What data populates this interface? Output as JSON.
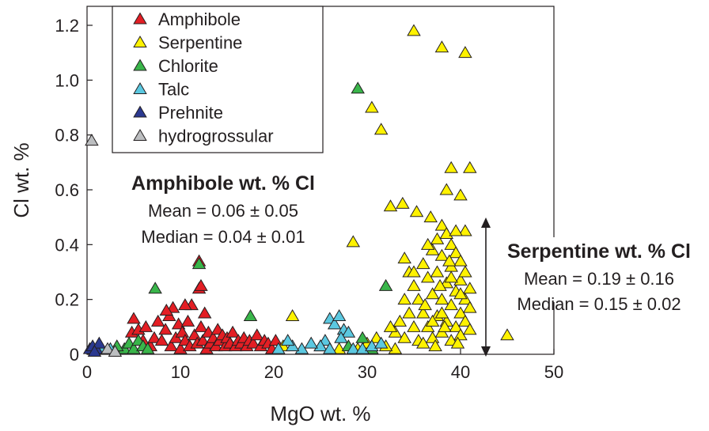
{
  "chart_data": {
    "type": "scatter",
    "title": "",
    "xlabel": "MgO wt. %",
    "ylabel": "Cl wt. %",
    "xlim": [
      0,
      50
    ],
    "ylim": [
      0,
      1.25
    ],
    "xticks": [
      0,
      10,
      20,
      30,
      40,
      50
    ],
    "ytick_labels": [
      "0",
      "0.2",
      "0.4",
      "0.6",
      "0.8",
      "1.0",
      "1.2"
    ],
    "yticks": [
      0,
      0.2,
      0.4,
      0.6,
      0.8,
      1.0,
      1.2
    ],
    "grid": false,
    "legend_position": "top-left",
    "marker": "triangle",
    "series": [
      {
        "name": "Amphibole",
        "color": "#e31e24",
        "points": [
          [
            4.8,
            0.08
          ],
          [
            5,
            0.13
          ],
          [
            5.5,
            0.09
          ],
          [
            6,
            0.05
          ],
          [
            6.3,
            0.1
          ],
          [
            6.8,
            0.03
          ],
          [
            7.2,
            0.06
          ],
          [
            7.6,
            0.12
          ],
          [
            8,
            0.05
          ],
          [
            8.4,
            0.09
          ],
          [
            8.8,
            0.14
          ],
          [
            9,
            0.03
          ],
          [
            9.2,
            0.17
          ],
          [
            9.5,
            0.06
          ],
          [
            9.8,
            0.11
          ],
          [
            10,
            0.02
          ],
          [
            10.2,
            0.08
          ],
          [
            10.5,
            0.05
          ],
          [
            10.8,
            0.12
          ],
          [
            11,
            0.03
          ],
          [
            11.2,
            0.18
          ],
          [
            11.5,
            0.07
          ],
          [
            11.8,
            0.04
          ],
          [
            12,
            0.24
          ],
          [
            12.2,
            0.1
          ],
          [
            12.4,
            0.05
          ],
          [
            12.6,
            0.15
          ],
          [
            12.8,
            0.02
          ],
          [
            13,
            0.08
          ],
          [
            13.2,
            0.04
          ],
          [
            13.5,
            0.06
          ],
          [
            13.8,
            0.03
          ],
          [
            14,
            0.09
          ],
          [
            14.2,
            0.05
          ],
          [
            14.5,
            0.07
          ],
          [
            14.8,
            0.03
          ],
          [
            15,
            0.06
          ],
          [
            15.3,
            0.04
          ],
          [
            15.6,
            0.08
          ],
          [
            15.9,
            0.03
          ],
          [
            16.2,
            0.05
          ],
          [
            16.5,
            0.04
          ],
          [
            16.8,
            0.06
          ],
          [
            17.1,
            0.03
          ],
          [
            17.4,
            0.05
          ],
          [
            17.8,
            0.04
          ],
          [
            18.2,
            0.07
          ],
          [
            18.6,
            0.03
          ],
          [
            19,
            0.05
          ],
          [
            19.4,
            0.04
          ],
          [
            19.8,
            0.02
          ],
          [
            20.2,
            0.05
          ],
          [
            12,
            0.34
          ],
          [
            12.2,
            0.25
          ],
          [
            10.5,
            0.18
          ],
          [
            8.5,
            0.16
          ]
        ]
      },
      {
        "name": "Serpentine",
        "color": "#fff200",
        "points": [
          [
            35,
            1.18
          ],
          [
            38,
            1.12
          ],
          [
            40.5,
            1.1
          ],
          [
            30.5,
            0.9
          ],
          [
            31.5,
            0.82
          ],
          [
            32.5,
            0.54
          ],
          [
            33.8,
            0.55
          ],
          [
            35.3,
            0.52
          ],
          [
            39,
            0.68
          ],
          [
            41,
            0.68
          ],
          [
            38.5,
            0.6
          ],
          [
            40,
            0.58
          ],
          [
            28.5,
            0.41
          ],
          [
            38,
            0.47
          ],
          [
            40.5,
            0.45
          ],
          [
            34,
            0.35
          ],
          [
            34.5,
            0.3
          ],
          [
            35,
            0.25
          ],
          [
            35.5,
            0.2
          ],
          [
            36,
            0.33
          ],
          [
            36,
            0.15
          ],
          [
            36.5,
            0.28
          ],
          [
            36.5,
            0.1
          ],
          [
            37,
            0.38
          ],
          [
            37,
            0.22
          ],
          [
            37,
            0.06
          ],
          [
            37.5,
            0.42
          ],
          [
            37.5,
            0.3
          ],
          [
            37.5,
            0.14
          ],
          [
            38,
            0.36
          ],
          [
            38,
            0.2
          ],
          [
            38,
            0.08
          ],
          [
            38.5,
            0.44
          ],
          [
            38.5,
            0.26
          ],
          [
            38.5,
            0.12
          ],
          [
            39,
            0.4
          ],
          [
            39,
            0.32
          ],
          [
            39,
            0.18
          ],
          [
            39,
            0.05
          ],
          [
            39.5,
            0.37
          ],
          [
            39.5,
            0.23
          ],
          [
            39.5,
            0.1
          ],
          [
            40,
            0.34
          ],
          [
            40,
            0.27
          ],
          [
            40,
            0.15
          ],
          [
            40,
            0.07
          ],
          [
            40.5,
            0.3
          ],
          [
            40.5,
            0.2
          ],
          [
            40.5,
            0.12
          ],
          [
            41,
            0.24
          ],
          [
            41,
            0.17
          ],
          [
            41,
            0.09
          ],
          [
            36.5,
            0.4
          ],
          [
            37,
            0.12
          ],
          [
            38,
            0.15
          ],
          [
            39,
            0.28
          ],
          [
            40,
            0.22
          ],
          [
            38.3,
            0.1
          ],
          [
            39.7,
            0.04
          ],
          [
            37.3,
            0.03
          ],
          [
            33,
            0.08
          ],
          [
            33.5,
            0.12
          ],
          [
            34,
            0.06
          ],
          [
            34.5,
            0.15
          ],
          [
            35,
            0.1
          ],
          [
            35.5,
            0.05
          ],
          [
            34,
            0.2
          ],
          [
            35,
            0.3
          ],
          [
            36,
            0.04
          ],
          [
            33,
            0.02
          ],
          [
            30,
            0.04
          ],
          [
            31,
            0.06
          ],
          [
            32,
            0.03
          ],
          [
            32.5,
            0.1
          ],
          [
            29,
            0.02
          ],
          [
            22,
            0.14
          ],
          [
            21,
            0.03
          ],
          [
            25,
            0.03
          ],
          [
            27,
            0.02
          ],
          [
            45,
            0.07
          ],
          [
            36.8,
            0.5
          ],
          [
            39.5,
            0.45
          ],
          [
            38.8,
            0.34
          ],
          [
            37.8,
            0.25
          ],
          [
            36.2,
            0.18
          ]
        ]
      },
      {
        "name": "Chlorite",
        "color": "#39b54a",
        "points": [
          [
            29,
            0.97
          ],
          [
            7.3,
            0.24
          ],
          [
            12,
            0.33
          ],
          [
            32,
            0.25
          ],
          [
            17.5,
            0.14
          ],
          [
            4,
            0.02
          ],
          [
            4.5,
            0.04
          ],
          [
            5,
            0.02
          ],
          [
            5.5,
            0.05
          ],
          [
            6,
            0.03
          ],
          [
            6.5,
            0.02
          ],
          [
            3.2,
            0.03
          ],
          [
            28,
            0.03
          ],
          [
            29.5,
            0.06
          ],
          [
            30.5,
            0.02
          ]
        ]
      },
      {
        "name": "Talc",
        "color": "#5bc8e0",
        "points": [
          [
            26,
            0.13
          ],
          [
            26.5,
            0.11
          ],
          [
            27,
            0.14
          ],
          [
            27.5,
            0.09
          ],
          [
            28,
            0.08
          ],
          [
            27.2,
            0.06
          ],
          [
            25.5,
            0.05
          ],
          [
            25,
            0.03
          ],
          [
            24,
            0.04
          ],
          [
            23,
            0.02
          ],
          [
            22,
            0.03
          ],
          [
            21.5,
            0.05
          ],
          [
            26,
            0.02
          ],
          [
            28.5,
            0.02
          ],
          [
            29.5,
            0.02
          ],
          [
            30.5,
            0.03
          ],
          [
            31.5,
            0.04
          ],
          [
            20.5,
            0.02
          ],
          [
            1.5,
            0.02
          ],
          [
            2.5,
            0.02
          ]
        ]
      },
      {
        "name": "Prehnite",
        "color": "#2b3990",
        "points": [
          [
            0.3,
            0.02
          ],
          [
            0.6,
            0.03
          ],
          [
            1,
            0.02
          ],
          [
            1.3,
            0.04
          ],
          [
            0.8,
            0.01
          ]
        ]
      },
      {
        "name": "hydrogrossular",
        "color": "#bcbec0",
        "points": [
          [
            0.5,
            0.78
          ],
          [
            2.2,
            0.02
          ],
          [
            3,
            0.01
          ]
        ]
      }
    ]
  },
  "annotations": {
    "amphibole": {
      "title": "Amphibole wt. % Cl",
      "mean": "Mean = 0.06 ± 0.05",
      "median": "Median = 0.04 ± 0.01"
    },
    "serpentine": {
      "title": "Serpentine wt. % Cl",
      "mean": "Mean = 0.19 ± 0.16",
      "median": "Median = 0.15 ± 0.02"
    }
  }
}
